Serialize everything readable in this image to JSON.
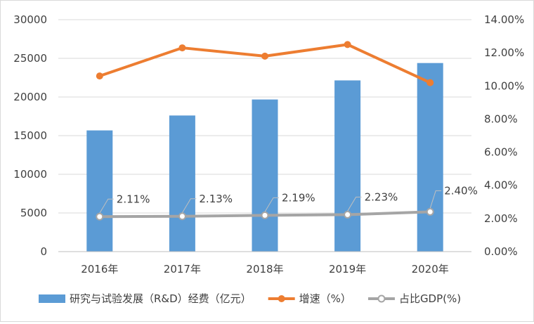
{
  "chart_data": {
    "type": "bar",
    "categories": [
      "2016年",
      "2017年",
      "2018年",
      "2019年",
      "2020年"
    ],
    "series": [
      {
        "name": "研究与试验发展（R&D）经费（亿元）",
        "kind": "bar",
        "axis": "left",
        "color": "#5b9bd5",
        "values": [
          15677,
          17606,
          19678,
          22144,
          24393
        ]
      },
      {
        "name": "增速（%）",
        "kind": "line",
        "axis": "right",
        "color": "#ed7d31",
        "values": [
          10.6,
          12.3,
          11.8,
          12.5,
          10.2
        ]
      },
      {
        "name": "占比GDP(%)",
        "kind": "line",
        "axis": "right",
        "color": "#a5a5a5",
        "marker": "hollow-circle",
        "values": [
          2.11,
          2.13,
          2.19,
          2.23,
          2.4
        ],
        "data_labels": [
          "2.11%",
          "2.13%",
          "2.19%",
          "2.23%",
          "2.40%"
        ]
      }
    ],
    "y_left": {
      "lim": [
        0,
        30000
      ],
      "ticks": [
        0,
        5000,
        10000,
        15000,
        20000,
        25000,
        30000
      ],
      "tick_labels": [
        "0",
        "5000",
        "10000",
        "15000",
        "20000",
        "25000",
        "30000"
      ]
    },
    "y_right": {
      "lim": [
        0,
        14
      ],
      "ticks": [
        0,
        2,
        4,
        6,
        8,
        10,
        12,
        14
      ],
      "tick_labels": [
        "0.00%",
        "2.00%",
        "4.00%",
        "6.00%",
        "8.00%",
        "10.00%",
        "12.00%",
        "14.00%"
      ]
    },
    "grid": "horizontal",
    "legend_position": "bottom"
  }
}
